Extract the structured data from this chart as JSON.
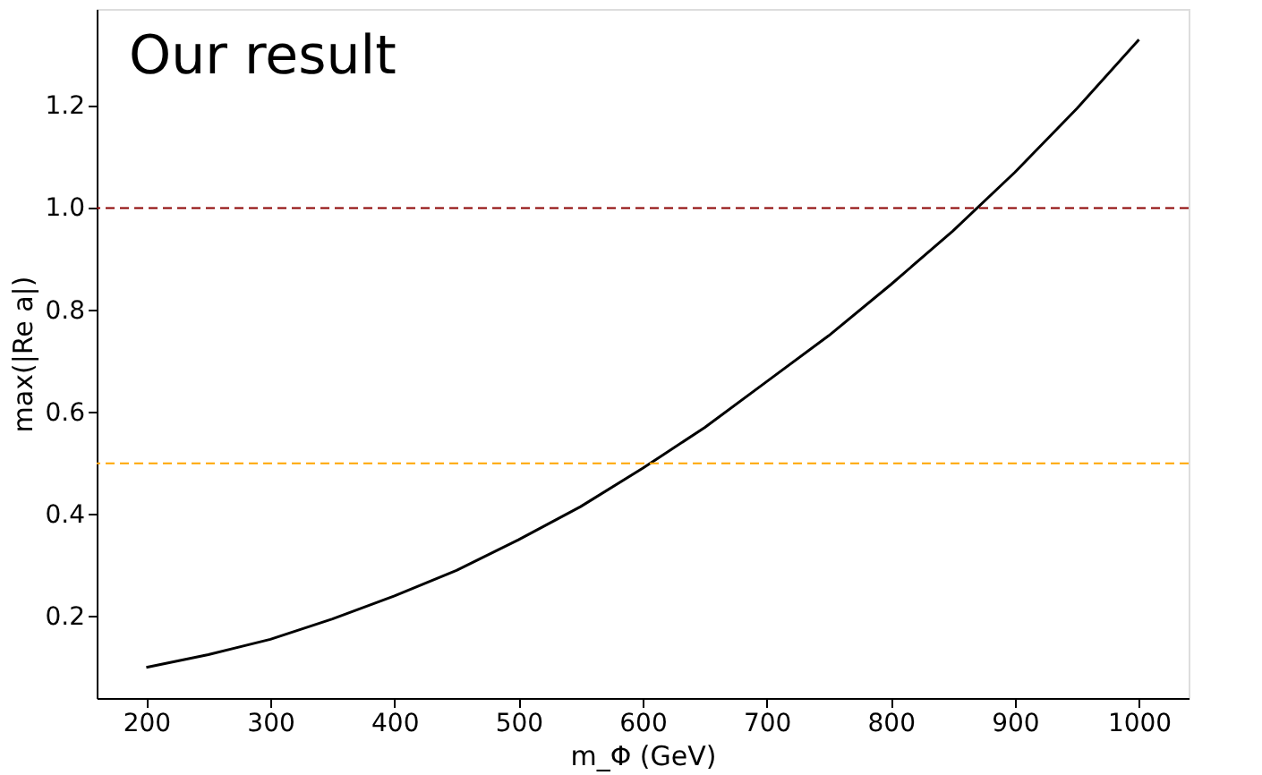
{
  "chart_data": {
    "type": "line",
    "xlabel": "m_Φ (GeV)",
    "ylabel": "max(|Re a|)",
    "annotations": [
      "Our result"
    ],
    "x": [
      200,
      250,
      300,
      350,
      400,
      450,
      500,
      550,
      600,
      650,
      700,
      750,
      800,
      850,
      900,
      950,
      1000
    ],
    "series": [
      {
        "color": "#000000",
        "values": [
          0.1,
          0.125,
          0.155,
          0.195,
          0.24,
          0.29,
          0.35,
          0.415,
          0.49,
          0.57,
          0.66,
          0.75,
          0.85,
          0.955,
          1.07,
          1.195,
          1.33
        ]
      }
    ],
    "ref_lines": [
      {
        "axis": "y",
        "value": 1.0,
        "color": "#8b0000",
        "line_style": "dashed"
      },
      {
        "axis": "y",
        "value": 0.5,
        "color": "#ffa500",
        "line_style": "dashed"
      }
    ],
    "xlim": [
      160,
      1040
    ],
    "ylim": [
      0.04,
      1.39
    ],
    "xticks": [
      200,
      300,
      400,
      500,
      600,
      700,
      800,
      900,
      1000
    ],
    "yticks": [
      0.2,
      0.4,
      0.6,
      0.8,
      {
        "value": 1.0,
        "label": "1.0"
      },
      1.2
    ],
    "grid": false,
    "marker": "none",
    "line_style": "solid"
  }
}
